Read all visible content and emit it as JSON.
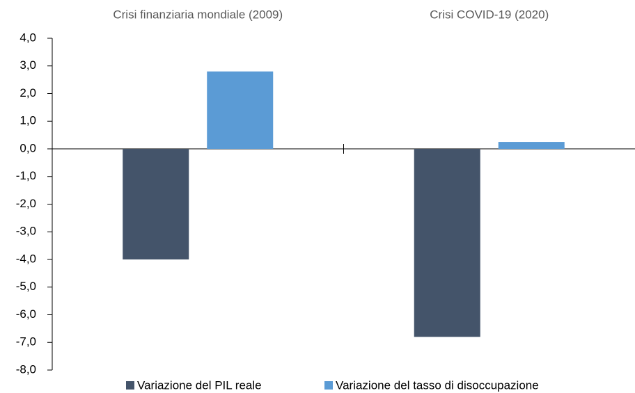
{
  "chart_data": {
    "type": "bar",
    "categories": [
      "Crisi finanziaria mondiale (2009)",
      "Crisi COVID-19 (2020)"
    ],
    "series": [
      {
        "name": "Variazione del PIL reale",
        "color": "#44546a",
        "values": [
          -4.0,
          -6.8
        ]
      },
      {
        "name": "Variazione del tasso di disoccupazione",
        "color": "#5b9bd5",
        "values": [
          2.8,
          0.25
        ]
      }
    ],
    "ylim": [
      -8,
      4
    ],
    "yticks": [
      {
        "value": 4,
        "label": "4,0"
      },
      {
        "value": 3,
        "label": "3,0"
      },
      {
        "value": 2,
        "label": "2,0"
      },
      {
        "value": 1,
        "label": "1,0"
      },
      {
        "value": 0,
        "label": "0,0"
      },
      {
        "value": -1,
        "label": "-1,0"
      },
      {
        "value": -2,
        "label": "-2,0"
      },
      {
        "value": -3,
        "label": "-3,0"
      },
      {
        "value": -4,
        "label": "-4,0"
      },
      {
        "value": -5,
        "label": "-5,0"
      },
      {
        "value": -6,
        "label": "-6,0"
      },
      {
        "value": -7,
        "label": "-7,0"
      },
      {
        "value": -8,
        "label": "-8,0"
      }
    ],
    "grid": false,
    "legend": "bottom"
  }
}
